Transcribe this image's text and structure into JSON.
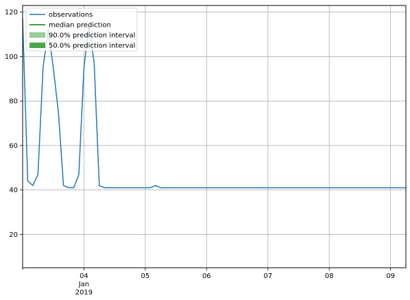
{
  "chart_data": {
    "type": "line",
    "title": "",
    "xlabel": "",
    "ylabel": "",
    "xlim": [
      "2019-01-03T00:00",
      "2019-01-09T06:00"
    ],
    "ylim": [
      5,
      123
    ],
    "grid": true,
    "legend_position": "top-left",
    "x_ticks": [
      {
        "x": "2019-01-04T00:00",
        "label": "04",
        "sub": [
          "Jan",
          "2019"
        ]
      },
      {
        "x": "2019-01-05T00:00",
        "label": "05"
      },
      {
        "x": "2019-01-06T00:00",
        "label": "06"
      },
      {
        "x": "2019-01-07T00:00",
        "label": "07"
      },
      {
        "x": "2019-01-08T00:00",
        "label": "08"
      },
      {
        "x": "2019-01-09T00:00",
        "label": "09"
      }
    ],
    "y_ticks": [
      20,
      40,
      60,
      80,
      100,
      120
    ],
    "colors": {
      "observations": "#1f77b4",
      "median": "#008000",
      "interval_90": "#99cc99",
      "interval_50": "#4da64d",
      "grid": "#b0b0b0"
    },
    "legend": [
      {
        "label": "observations",
        "kind": "line",
        "color": "#1f77b4"
      },
      {
        "label": "median prediction",
        "kind": "line",
        "color": "#008000"
      },
      {
        "label": "90.0% prediction interval",
        "kind": "patch",
        "color": "#99cc99"
      },
      {
        "label": "50.0% prediction interval",
        "kind": "patch",
        "color": "#4da64d"
      }
    ],
    "series": [
      {
        "name": "observations",
        "x": [
          "2019-01-03T00:00",
          "2019-01-03T02:00",
          "2019-01-03T04:00",
          "2019-01-03T06:00",
          "2019-01-03T08:00",
          "2019-01-03T10:00",
          "2019-01-03T12:00",
          "2019-01-03T14:00",
          "2019-01-03T16:00",
          "2019-01-03T18:00",
          "2019-01-03T20:00",
          "2019-01-03T22:00",
          "2019-01-04T00:00",
          "2019-01-04T02:00",
          "2019-01-04T04:00",
          "2019-01-04T06:00",
          "2019-01-04T08:00",
          "2019-01-04T10:00",
          "2019-01-04T12:00",
          "2019-01-04T14:00",
          "2019-01-04T16:00",
          "2019-01-04T18:00",
          "2019-01-04T20:00",
          "2019-01-04T22:00",
          "2019-01-05T00:00",
          "2019-01-05T02:00",
          "2019-01-05T04:00",
          "2019-01-05T06:00",
          "2019-01-05T08:00",
          "2019-01-05T10:00",
          "2019-01-05T12:00",
          "2019-01-05T14:00",
          "2019-01-05T16:00",
          "2019-01-05T18:00",
          "2019-01-05T20:00",
          "2019-01-05T22:00",
          "2019-01-06T00:00",
          "2019-01-06T02:00",
          "2019-01-06T04:00",
          "2019-01-06T06:00",
          "2019-01-06T08:00",
          "2019-01-06T10:00",
          "2019-01-06T12:00",
          "2019-01-06T14:00",
          "2019-01-06T16:00",
          "2019-01-06T18:00",
          "2019-01-06T20:00",
          "2019-01-06T22:00",
          "2019-01-07T00:00",
          "2019-01-07T02:00",
          "2019-01-07T04:00",
          "2019-01-07T06:00",
          "2019-01-07T08:00",
          "2019-01-07T10:00",
          "2019-01-07T12:00",
          "2019-01-07T14:00",
          "2019-01-07T16:00",
          "2019-01-07T18:00",
          "2019-01-07T20:00",
          "2019-01-07T22:00",
          "2019-01-08T00:00",
          "2019-01-08T02:00",
          "2019-01-08T04:00",
          "2019-01-08T06:00",
          "2019-01-08T08:00",
          "2019-01-08T10:00",
          "2019-01-08T12:00",
          "2019-01-08T14:00",
          "2019-01-08T16:00",
          "2019-01-08T18:00",
          "2019-01-08T20:00",
          "2019-01-08T22:00",
          "2019-01-09T00:00",
          "2019-01-09T02:00",
          "2019-01-09T04:00",
          "2019-01-09T06:00"
        ],
        "values": [
          117,
          44,
          42,
          47,
          95,
          112,
          95,
          75,
          42,
          41,
          41,
          47,
          95,
          114,
          97,
          42,
          41,
          41,
          41,
          41,
          41,
          41,
          41,
          41,
          41,
          41,
          42,
          41,
          41,
          41,
          41,
          41,
          41,
          41,
          41,
          41,
          41,
          41,
          41,
          41,
          41,
          41,
          41,
          41,
          41,
          41,
          41,
          41,
          41,
          41,
          41,
          41,
          41,
          41,
          41,
          41,
          41,
          41,
          41,
          41,
          41,
          41,
          41,
          41,
          41,
          41,
          41,
          41,
          41,
          41,
          41,
          41,
          41,
          41,
          41,
          41
        ]
      }
    ]
  }
}
